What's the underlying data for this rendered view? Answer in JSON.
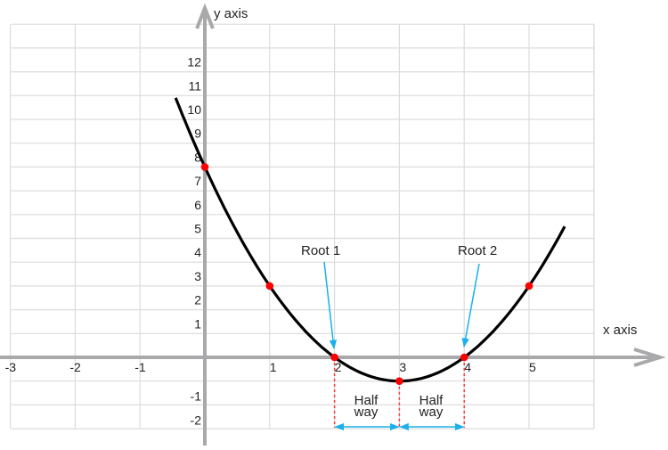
{
  "chart_data": {
    "type": "line",
    "title": "",
    "xlabel": "x axis",
    "ylabel": "y axis",
    "function": "y = x^2 - 6x + 8",
    "xlim": [
      -3,
      6.4
    ],
    "ylim": [
      -3,
      14
    ],
    "grid": true,
    "x_ticks": [
      -3,
      -2,
      -1,
      1,
      2,
      3,
      4,
      5
    ],
    "y_ticks": [
      12,
      11,
      10,
      9,
      8,
      7,
      6,
      5,
      4,
      3,
      2,
      1,
      -1,
      -2
    ],
    "curve_range": [
      -0.45,
      5.55
    ],
    "points": [
      {
        "x": 0,
        "y": 8
      },
      {
        "x": 1,
        "y": 3
      },
      {
        "x": 2,
        "y": 0
      },
      {
        "x": 3,
        "y": -1
      },
      {
        "x": 4,
        "y": 0
      },
      {
        "x": 5,
        "y": 3
      }
    ],
    "annotations": [
      {
        "text": "Root 1",
        "x": 2,
        "y": 0
      },
      {
        "text": "Root 2",
        "x": 4,
        "y": 0
      },
      {
        "text": "Half way",
        "from": 2,
        "to": 3
      },
      {
        "text": "Half way",
        "from": 3,
        "to": 4
      }
    ]
  },
  "labels": {
    "y_axis": "y axis",
    "x_axis": "x axis",
    "root1": "Root 1",
    "root2": "Root 2",
    "half1_line1": "Half",
    "half1_line2": "way",
    "half2_line1": "Half",
    "half2_line2": "way"
  },
  "colors": {
    "grid": "#dcdcdc",
    "axis": "#a9a9ab",
    "curve": "#000000",
    "point": "#ff0000",
    "annotation": "#1ab0ea",
    "dashed": "#ff3b3b"
  }
}
